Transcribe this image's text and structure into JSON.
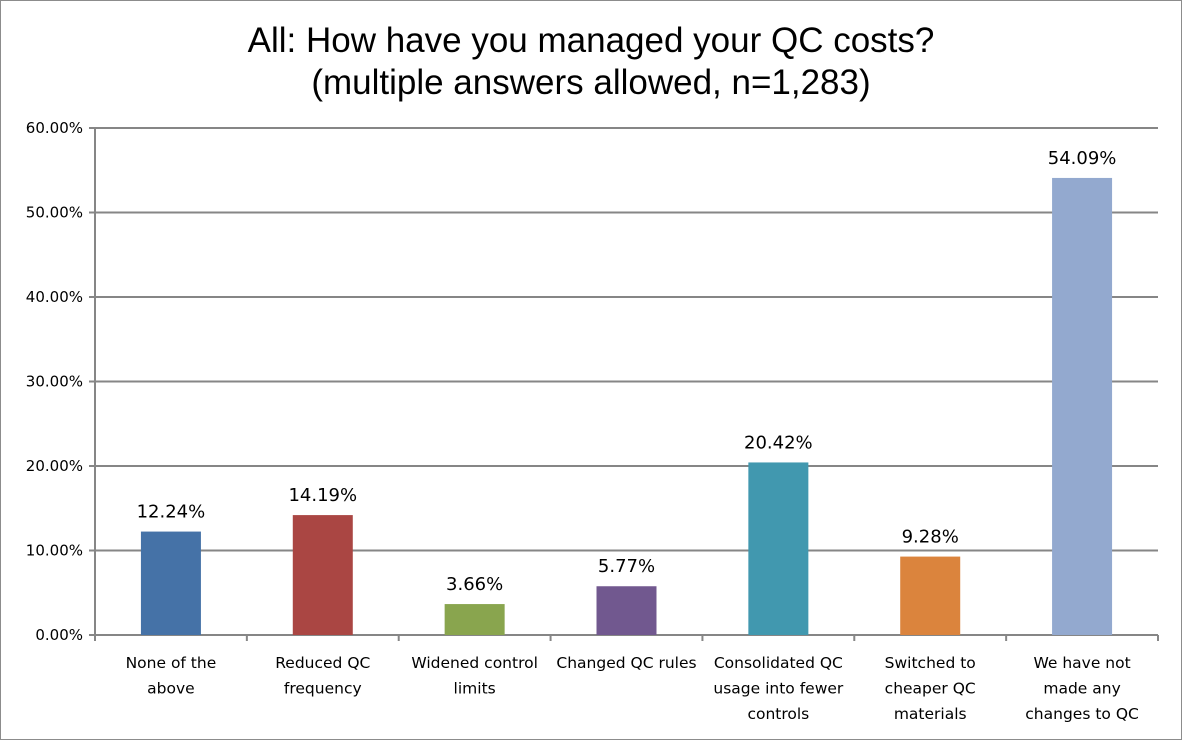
{
  "chart_data": {
    "type": "bar",
    "title_lines": [
      "All: How have you managed your QC costs?",
      "(multiple answers allowed, n=1,283)"
    ],
    "categories": [
      [
        "None of the",
        "above"
      ],
      [
        "Reduced QC",
        "frequency"
      ],
      [
        "Widened control",
        "limits"
      ],
      [
        "Changed QC rules"
      ],
      [
        "Consolidated QC",
        "usage into fewer",
        "controls"
      ],
      [
        "Switched to",
        "cheaper QC",
        "materials"
      ],
      [
        "We have not",
        "made any",
        "changes to QC"
      ]
    ],
    "values": [
      12.24,
      14.19,
      3.66,
      5.77,
      20.42,
      9.28,
      54.09
    ],
    "data_labels": [
      "12.24%",
      "14.19%",
      "3.66%",
      "5.77%",
      "20.42%",
      "9.28%",
      "54.09%"
    ],
    "colors": [
      "#4572A7",
      "#AA4643",
      "#89A54E",
      "#71588F",
      "#4198AF",
      "#DB843D",
      "#93A9CF"
    ],
    "y_ticks": [
      "0.00%",
      "10.00%",
      "20.00%",
      "30.00%",
      "40.00%",
      "50.00%",
      "60.00%"
    ],
    "ylim": [
      0,
      60
    ],
    "grid": true,
    "legend": "none",
    "xlabel": "",
    "ylabel": ""
  }
}
